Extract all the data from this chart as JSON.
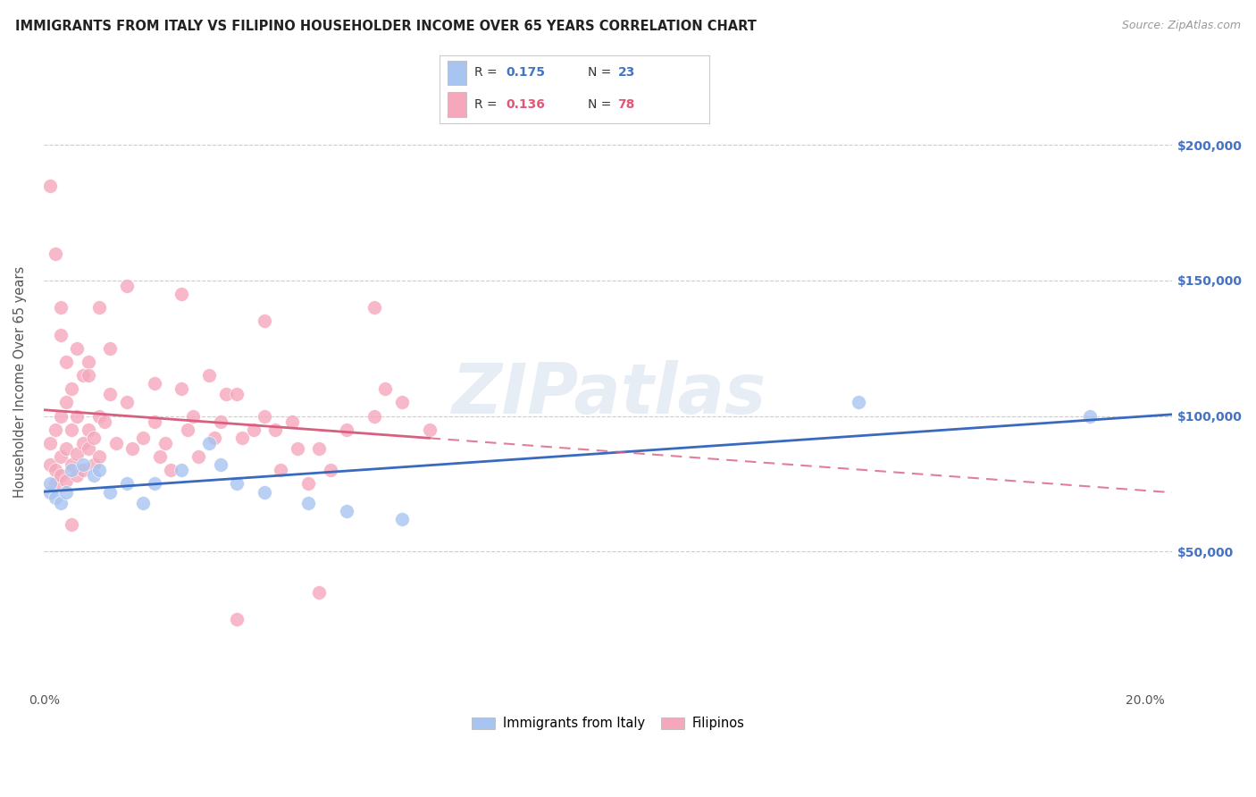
{
  "title": "IMMIGRANTS FROM ITALY VS FILIPINO HOUSEHOLDER INCOME OVER 65 YEARS CORRELATION CHART",
  "source": "Source: ZipAtlas.com",
  "ylabel": "Householder Income Over 65 years",
  "xlim": [
    0.0,
    0.205
  ],
  "ylim": [
    0,
    225000
  ],
  "color_italy": "#a8c4f0",
  "color_filipino": "#f5a8bc",
  "line_color_italy": "#3a6abf",
  "line_color_filipino": "#d95f80",
  "background_color": "#ffffff",
  "grid_color": "#cccccc",
  "watermark": "ZIPatlas",
  "italy_x": [
    0.001,
    0.001,
    0.002,
    0.003,
    0.004,
    0.005,
    0.006,
    0.007,
    0.01,
    0.012,
    0.015,
    0.02,
    0.022,
    0.025,
    0.028,
    0.032,
    0.038,
    0.042,
    0.048,
    0.055,
    0.065,
    0.148,
    0.19
  ],
  "italy_y": [
    75000,
    80000,
    72000,
    68000,
    70000,
    78000,
    82000,
    85000,
    80000,
    72000,
    78000,
    80000,
    90000,
    85000,
    75000,
    80000,
    72000,
    68000,
    65000,
    62000,
    60000,
    105000,
    100000
  ],
  "filipino_x": [
    0.001,
    0.001,
    0.001,
    0.002,
    0.002,
    0.002,
    0.003,
    0.003,
    0.003,
    0.003,
    0.004,
    0.004,
    0.004,
    0.005,
    0.005,
    0.005,
    0.005,
    0.006,
    0.006,
    0.006,
    0.007,
    0.007,
    0.007,
    0.008,
    0.008,
    0.008,
    0.009,
    0.009,
    0.01,
    0.01,
    0.011,
    0.012,
    0.013,
    0.014,
    0.015,
    0.016,
    0.018,
    0.019,
    0.02,
    0.021,
    0.022,
    0.023,
    0.024,
    0.025,
    0.026,
    0.027,
    0.028,
    0.03,
    0.031,
    0.032,
    0.033,
    0.035,
    0.036,
    0.037,
    0.038,
    0.04,
    0.041,
    0.042,
    0.043,
    0.045,
    0.046,
    0.047,
    0.048,
    0.05,
    0.052,
    0.055,
    0.06,
    0.062,
    0.065,
    0.07,
    0.002,
    0.003,
    0.005,
    0.008,
    0.012,
    0.02,
    0.035,
    0.05
  ],
  "filipino_y": [
    82000,
    90000,
    185000,
    80000,
    95000,
    75000,
    120000,
    100000,
    130000,
    78000,
    115000,
    76000,
    105000,
    82000,
    128000,
    110000,
    72000,
    116000,
    100000,
    135000,
    80000,
    120000,
    75000,
    110000,
    125000,
    78000,
    95000,
    82000,
    100000,
    140000,
    98000,
    108000,
    110000,
    145000,
    145000,
    128000,
    92000,
    78000,
    98000,
    145000,
    120000,
    80000,
    118000,
    125000,
    125000,
    100000,
    95000,
    115000,
    92000,
    98000,
    108000,
    108000,
    92000,
    80000,
    105000,
    100000,
    88000,
    95000,
    80000,
    128000,
    88000,
    85000,
    75000,
    118000,
    80000,
    95000,
    100000,
    130000,
    105000,
    95000,
    160000,
    140000,
    60000,
    120000,
    125000,
    112000,
    25000,
    35000
  ]
}
